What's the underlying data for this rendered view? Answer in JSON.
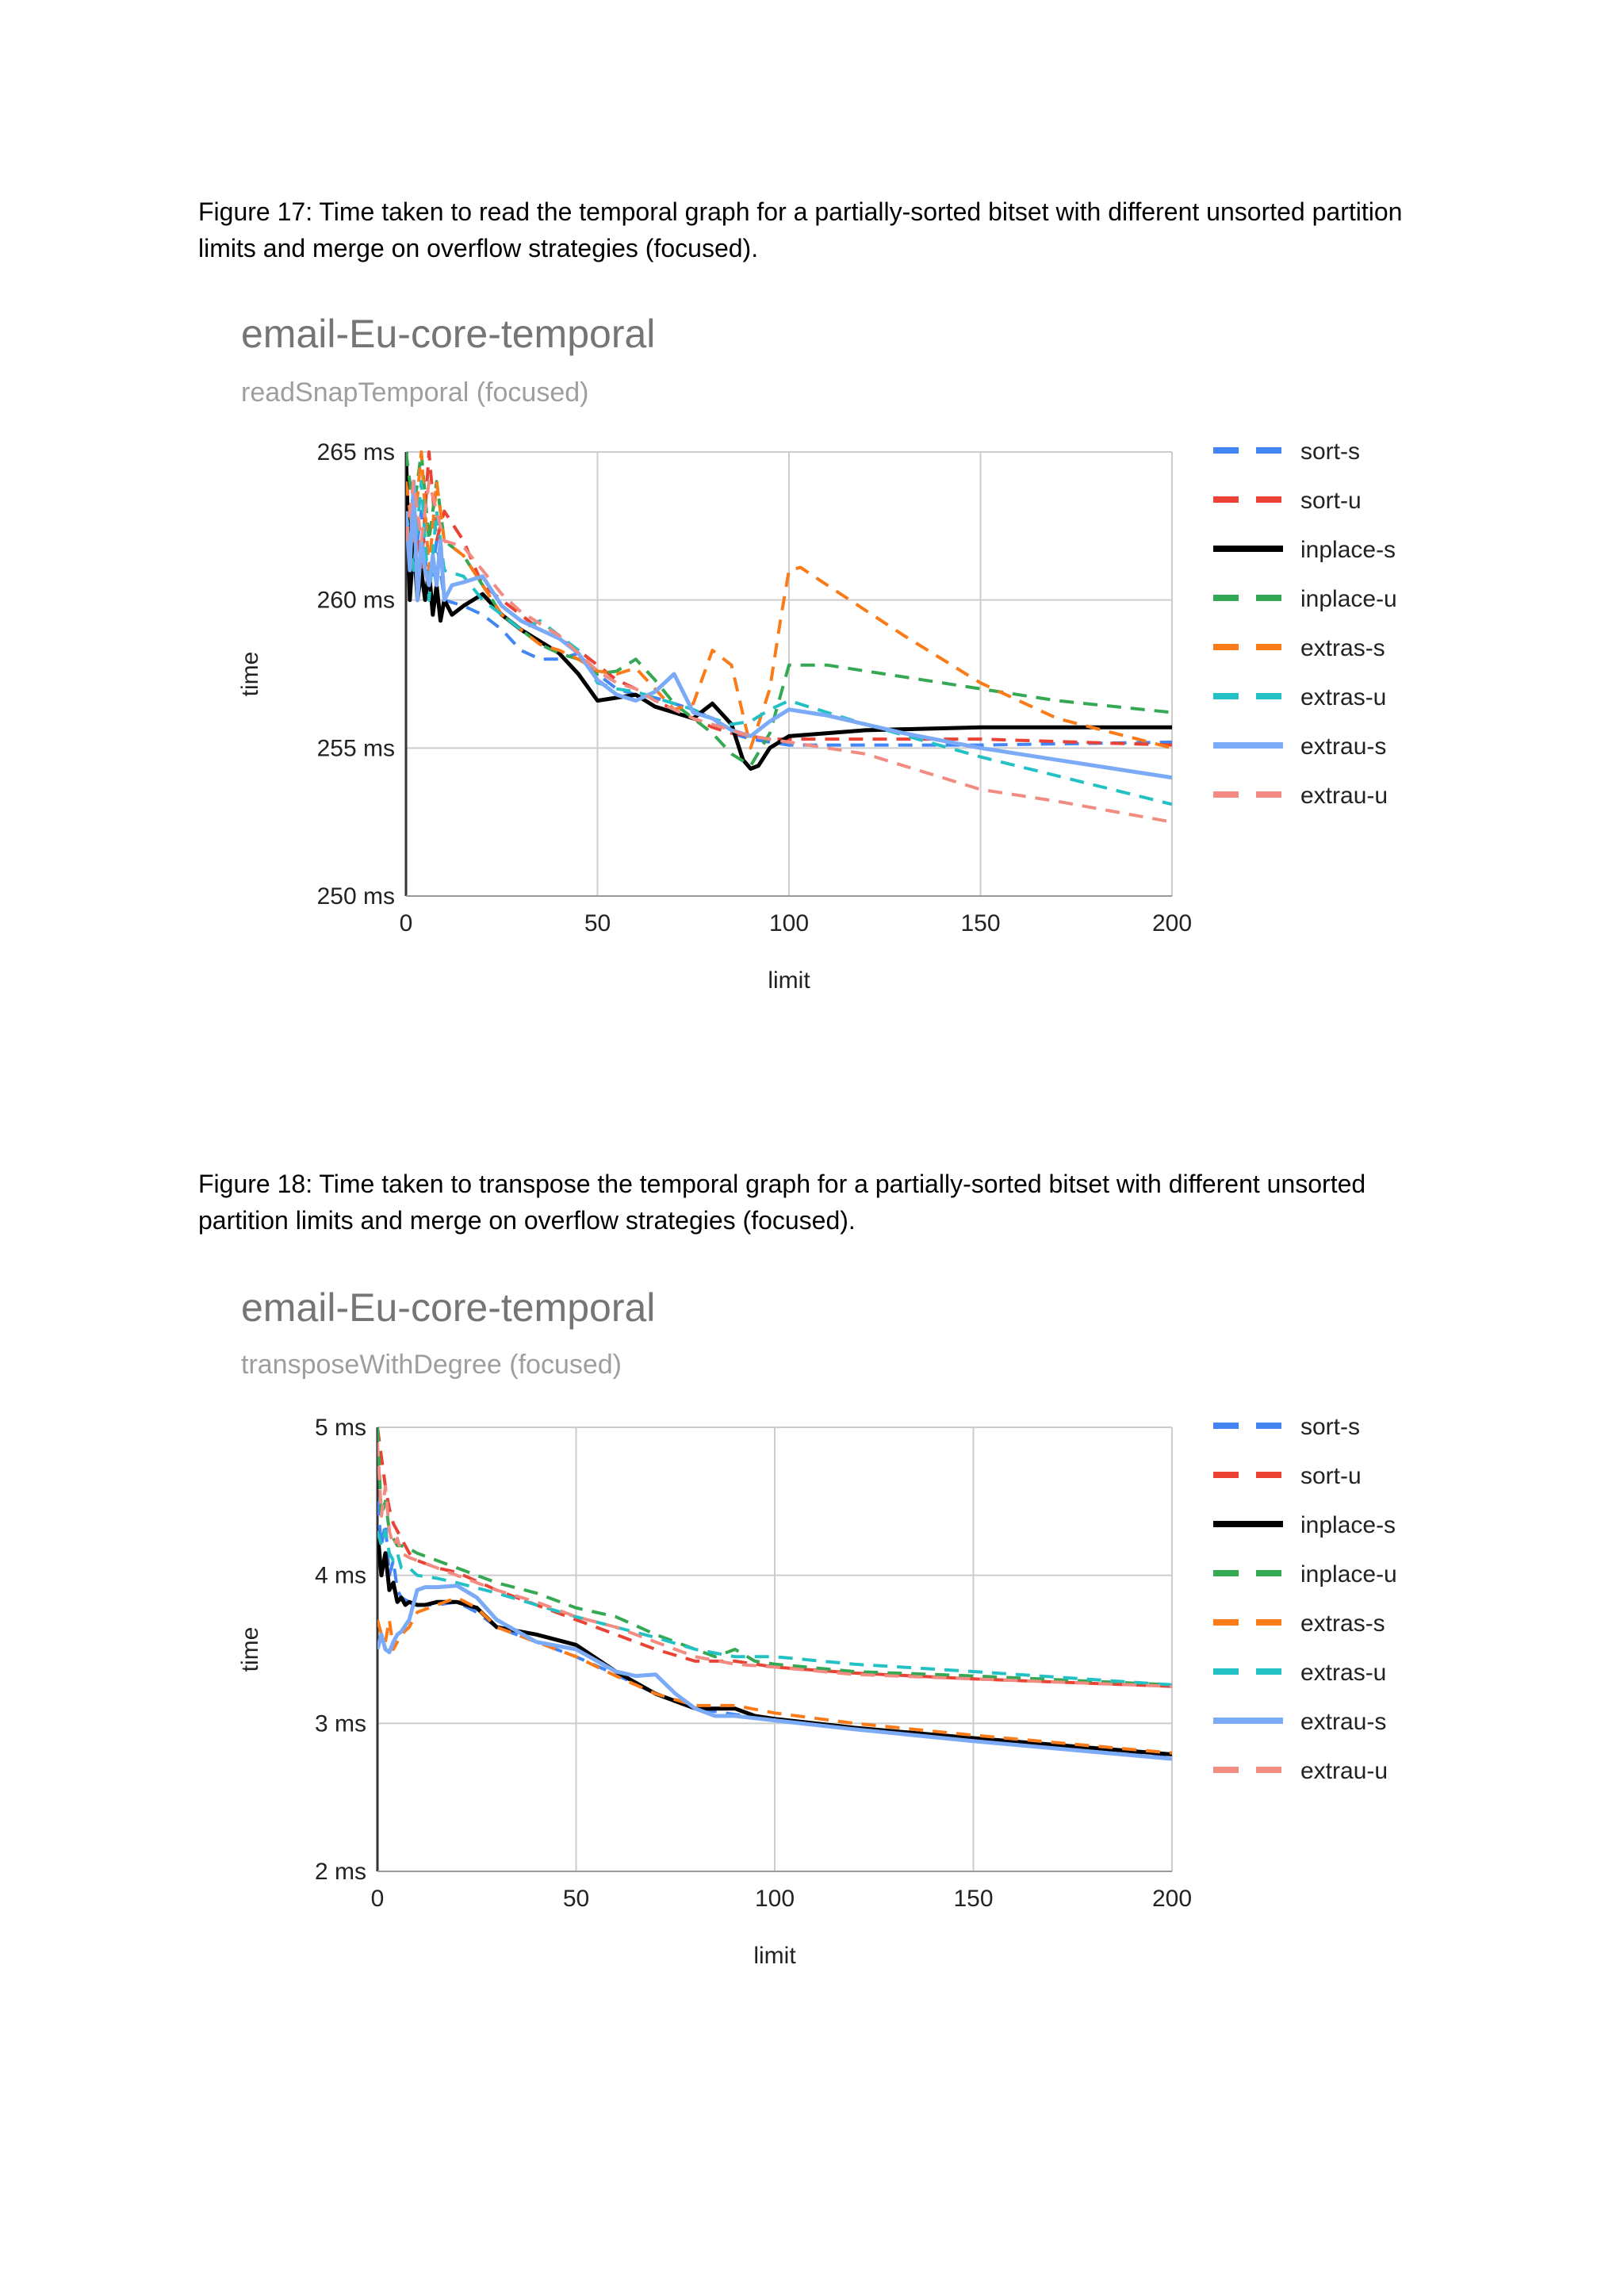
{
  "captions": {
    "fig17": "Figure 17: Time taken to read the temporal graph for a partially-sorted bitset with different unsorted partition limits and merge on overflow strategies (focused).",
    "fig18": "Figure 18: Time taken to transpose the temporal graph for a partially-sorted bitset with different unsorted partition limits and merge on overflow strategies (focused)."
  },
  "chart_data": [
    {
      "type": "line",
      "title": "email-Eu-core-temporal",
      "subtitle": "readSnapTemporal (focused)",
      "xlabel": "limit",
      "ylabel": "time",
      "xlim": [
        0,
        200
      ],
      "ylim": [
        250,
        265
      ],
      "x_ticks": [
        "0",
        "50",
        "100",
        "150",
        "200"
      ],
      "y_ticks": [
        "250 ms",
        "255 ms",
        "260 ms",
        "265 ms"
      ],
      "grid": true,
      "legend_position": "right",
      "series": [
        {
          "name": "sort-s",
          "color": "#4285f4",
          "dash": true,
          "x": [
            0,
            2,
            4,
            6,
            8,
            10,
            15,
            20,
            25,
            30,
            35,
            40,
            45,
            50,
            55,
            60,
            65,
            70,
            75,
            80,
            85,
            90,
            95,
            100,
            120,
            150,
            200
          ],
          "y": [
            264,
            261,
            263,
            260,
            262,
            260,
            259.8,
            259.5,
            259,
            258.3,
            258,
            258,
            258.2,
            257.5,
            257,
            256.8,
            256.7,
            256.5,
            256.3,
            256.0,
            255.5,
            255.3,
            255.2,
            255.1,
            255.1,
            255.1,
            255.2
          ]
        },
        {
          "name": "sort-u",
          "color": "#ea4335",
          "dash": true,
          "x": [
            0,
            2,
            4,
            6,
            8,
            10,
            15,
            20,
            25,
            30,
            35,
            40,
            45,
            50,
            55,
            60,
            65,
            70,
            75,
            80,
            85,
            90,
            95,
            100,
            120,
            150,
            200
          ],
          "y": [
            262,
            264,
            261,
            265,
            262,
            263,
            262,
            260.5,
            260,
            259.5,
            259,
            258.7,
            258.3,
            257.8,
            257.3,
            257,
            256.6,
            256.3,
            256.0,
            255.7,
            255.5,
            255.4,
            255.3,
            255.3,
            255.3,
            255.3,
            255.1
          ]
        },
        {
          "name": "inplace-s",
          "color": "#000000",
          "dash": false,
          "x": [
            0,
            1,
            2,
            3,
            4,
            5,
            6,
            7,
            8,
            9,
            10,
            12,
            15,
            20,
            25,
            30,
            35,
            40,
            45,
            50,
            55,
            60,
            65,
            70,
            75,
            80,
            85,
            88,
            90,
            92,
            95,
            100,
            120,
            150,
            200
          ],
          "y": [
            265,
            260,
            262,
            260,
            261,
            260,
            261,
            259.5,
            260.5,
            259.3,
            260,
            259.5,
            259.8,
            260.2,
            259.5,
            259,
            258.6,
            258.2,
            257.5,
            256.6,
            256.7,
            256.8,
            256.4,
            256.2,
            256.0,
            256.5,
            255.8,
            254.6,
            254.3,
            254.4,
            255.0,
            255.4,
            255.6,
            255.7,
            255.7
          ]
        },
        {
          "name": "inplace-u",
          "color": "#34a853",
          "dash": true,
          "x": [
            0,
            2,
            4,
            6,
            8,
            10,
            15,
            20,
            25,
            30,
            35,
            40,
            45,
            50,
            55,
            60,
            65,
            70,
            75,
            80,
            85,
            90,
            95,
            100,
            110,
            130,
            150,
            170,
            200
          ],
          "y": [
            265,
            263,
            265,
            262,
            264,
            262,
            261.5,
            260.5,
            259.5,
            259,
            258.5,
            258.2,
            258,
            257.5,
            257.6,
            258,
            257.3,
            256.5,
            256.0,
            255.5,
            254.8,
            254.4,
            255.5,
            257.8,
            257.8,
            257.4,
            257.0,
            256.6,
            256.2
          ]
        },
        {
          "name": "extras-s",
          "color": "#fa7b17",
          "dash": true,
          "x": [
            0,
            2,
            4,
            6,
            8,
            10,
            15,
            20,
            25,
            30,
            35,
            40,
            45,
            50,
            55,
            60,
            65,
            70,
            75,
            80,
            85,
            90,
            95,
            98,
            100,
            103,
            110,
            130,
            150,
            170,
            200
          ],
          "y": [
            264,
            262,
            265,
            261,
            264,
            262,
            261.5,
            260.5,
            259.5,
            259,
            258.5,
            258.3,
            258.0,
            257.6,
            257.5,
            257.7,
            257.0,
            256.3,
            256.5,
            258.3,
            257.8,
            255.0,
            257.0,
            259.5,
            261.0,
            261.1,
            260.5,
            258.8,
            257.2,
            256.0,
            255.0
          ]
        },
        {
          "name": "extras-u",
          "color": "#24c1c4",
          "dash": true,
          "x": [
            0,
            2,
            4,
            6,
            8,
            10,
            15,
            20,
            25,
            30,
            35,
            40,
            45,
            50,
            55,
            60,
            65,
            70,
            75,
            80,
            85,
            90,
            95,
            100,
            120,
            150,
            200
          ],
          "y": [
            263,
            261,
            264,
            260,
            263,
            261,
            260.8,
            260,
            259.5,
            259,
            259.3,
            258.8,
            258.3,
            257.2,
            257.0,
            256.9,
            256.7,
            256.5,
            256.3,
            256.0,
            255.8,
            255.9,
            256.3,
            256.6,
            255.8,
            254.7,
            253.1
          ]
        },
        {
          "name": "extrau-s",
          "color": "#7baaf7",
          "dash": false,
          "x": [
            0,
            1,
            2,
            3,
            4,
            5,
            6,
            7,
            8,
            9,
            10,
            12,
            15,
            20,
            25,
            30,
            35,
            40,
            45,
            50,
            55,
            60,
            65,
            70,
            75,
            80,
            85,
            90,
            95,
            100,
            110,
            130,
            150,
            170,
            200
          ],
          "y": [
            263,
            261,
            264,
            260,
            262,
            261,
            260.5,
            261.5,
            260.5,
            262,
            260,
            260.5,
            260.6,
            260.8,
            259.8,
            259.3,
            259.0,
            258.7,
            258.2,
            257.3,
            256.8,
            256.6,
            256.9,
            257.5,
            256.2,
            256.0,
            255.6,
            255.4,
            255.9,
            256.3,
            256.1,
            255.5,
            255.0,
            254.6,
            254.0
          ]
        },
        {
          "name": "extrau-u",
          "color": "#f28b82",
          "dash": true,
          "x": [
            0,
            2,
            4,
            6,
            8,
            10,
            15,
            20,
            25,
            30,
            35,
            40,
            45,
            50,
            55,
            60,
            65,
            70,
            75,
            80,
            85,
            90,
            95,
            100,
            120,
            150,
            170,
            200
          ],
          "y": [
            262,
            264,
            262,
            264,
            263,
            262,
            261.8,
            261,
            260.2,
            259.6,
            259.2,
            258.8,
            258.2,
            257.6,
            257.2,
            257.0,
            256.6,
            256.3,
            256.0,
            255.8,
            255.6,
            255.4,
            255.3,
            255.2,
            254.8,
            253.6,
            253.2,
            252.5
          ]
        }
      ]
    },
    {
      "type": "line",
      "title": "email-Eu-core-temporal",
      "subtitle": "transposeWithDegree (focused)",
      "xlabel": "limit",
      "ylabel": "time",
      "xlim": [
        0,
        200
      ],
      "ylim": [
        2,
        5
      ],
      "x_ticks": [
        "0",
        "50",
        "100",
        "150",
        "200"
      ],
      "y_ticks": [
        "2 ms",
        "3 ms",
        "4 ms",
        "5 ms"
      ],
      "grid": true,
      "legend_position": "right",
      "series": [
        {
          "name": "sort-s",
          "color": "#4285f4",
          "dash": true,
          "x": [
            0,
            1,
            2,
            3,
            4,
            5,
            6,
            8,
            10,
            15,
            20,
            25,
            30,
            40,
            50,
            60,
            70,
            80,
            90,
            100,
            120,
            150,
            200
          ],
          "y": [
            4.5,
            4.2,
            4.35,
            4.0,
            4.1,
            3.9,
            3.85,
            3.82,
            3.8,
            3.8,
            3.82,
            3.75,
            3.65,
            3.55,
            3.45,
            3.33,
            3.2,
            3.1,
            3.06,
            3.03,
            2.97,
            2.9,
            2.78
          ]
        },
        {
          "name": "sort-u",
          "color": "#ea4335",
          "dash": true,
          "x": [
            0,
            1,
            2,
            3,
            4,
            5,
            6,
            8,
            10,
            15,
            20,
            30,
            40,
            50,
            60,
            70,
            80,
            90,
            100,
            120,
            150,
            200
          ],
          "y": [
            5.0,
            4.8,
            4.6,
            4.45,
            4.35,
            4.3,
            4.25,
            4.15,
            4.1,
            4.05,
            4.02,
            3.9,
            3.8,
            3.7,
            3.6,
            3.5,
            3.42,
            3.42,
            3.38,
            3.34,
            3.3,
            3.25
          ]
        },
        {
          "name": "inplace-s",
          "color": "#000000",
          "dash": false,
          "x": [
            0,
            1,
            2,
            3,
            4,
            5,
            6,
            7,
            8,
            10,
            12,
            15,
            20,
            25,
            30,
            40,
            50,
            60,
            70,
            80,
            85,
            90,
            95,
            100,
            120,
            150,
            200
          ],
          "y": [
            4.3,
            4.0,
            4.15,
            3.9,
            3.95,
            3.82,
            3.85,
            3.8,
            3.82,
            3.8,
            3.8,
            3.82,
            3.82,
            3.78,
            3.65,
            3.6,
            3.53,
            3.35,
            3.2,
            3.1,
            3.1,
            3.1,
            3.05,
            3.03,
            2.97,
            2.9,
            2.79
          ]
        },
        {
          "name": "inplace-u",
          "color": "#34a853",
          "dash": true,
          "x": [
            0,
            1,
            2,
            3,
            4,
            5,
            6,
            8,
            10,
            15,
            20,
            30,
            40,
            50,
            60,
            70,
            80,
            85,
            90,
            95,
            100,
            120,
            150,
            200
          ],
          "y": [
            5.0,
            4.4,
            4.5,
            4.3,
            4.25,
            4.2,
            4.2,
            4.18,
            4.15,
            4.1,
            4.05,
            3.95,
            3.88,
            3.78,
            3.72,
            3.6,
            3.5,
            3.45,
            3.5,
            3.42,
            3.4,
            3.35,
            3.32,
            3.26
          ]
        },
        {
          "name": "extras-s",
          "color": "#fa7b17",
          "dash": true,
          "x": [
            0,
            1,
            2,
            3,
            4,
            5,
            6,
            8,
            10,
            15,
            20,
            25,
            30,
            40,
            50,
            60,
            70,
            80,
            90,
            100,
            120,
            150,
            200
          ],
          "y": [
            3.7,
            3.6,
            3.55,
            3.7,
            3.5,
            3.55,
            3.6,
            3.65,
            3.75,
            3.8,
            3.85,
            3.78,
            3.65,
            3.55,
            3.45,
            3.32,
            3.2,
            3.12,
            3.12,
            3.07,
            3.0,
            2.92,
            2.8
          ]
        },
        {
          "name": "extras-u",
          "color": "#24c1c4",
          "dash": true,
          "x": [
            0,
            1,
            2,
            3,
            4,
            5,
            6,
            8,
            10,
            15,
            20,
            30,
            40,
            50,
            60,
            70,
            80,
            90,
            100,
            120,
            150,
            200
          ],
          "y": [
            4.3,
            4.2,
            4.3,
            4.15,
            4.1,
            4.15,
            4.05,
            4.05,
            4.0,
            3.98,
            3.95,
            3.88,
            3.8,
            3.72,
            3.65,
            3.58,
            3.5,
            3.45,
            3.45,
            3.4,
            3.35,
            3.26
          ]
        },
        {
          "name": "extrau-s",
          "color": "#7baaf7",
          "dash": false,
          "x": [
            0,
            1,
            2,
            3,
            4,
            5,
            6,
            8,
            10,
            12,
            15,
            20,
            25,
            30,
            40,
            50,
            60,
            65,
            70,
            75,
            80,
            85,
            90,
            100,
            120,
            150,
            200
          ],
          "y": [
            3.5,
            3.6,
            3.5,
            3.48,
            3.55,
            3.6,
            3.62,
            3.7,
            3.9,
            3.92,
            3.92,
            3.93,
            3.85,
            3.7,
            3.55,
            3.5,
            3.35,
            3.32,
            3.33,
            3.2,
            3.1,
            3.05,
            3.05,
            3.02,
            2.96,
            2.88,
            2.76
          ]
        },
        {
          "name": "extrau-u",
          "color": "#f28b82",
          "dash": true,
          "x": [
            0,
            1,
            2,
            3,
            4,
            5,
            6,
            8,
            10,
            15,
            20,
            30,
            40,
            50,
            60,
            70,
            80,
            90,
            100,
            120,
            150,
            200
          ],
          "y": [
            4.9,
            4.4,
            4.6,
            4.3,
            4.2,
            4.25,
            4.15,
            4.12,
            4.1,
            4.05,
            4.0,
            3.9,
            3.82,
            3.72,
            3.65,
            3.55,
            3.45,
            3.4,
            3.38,
            3.33,
            3.3,
            3.25
          ]
        }
      ]
    }
  ]
}
